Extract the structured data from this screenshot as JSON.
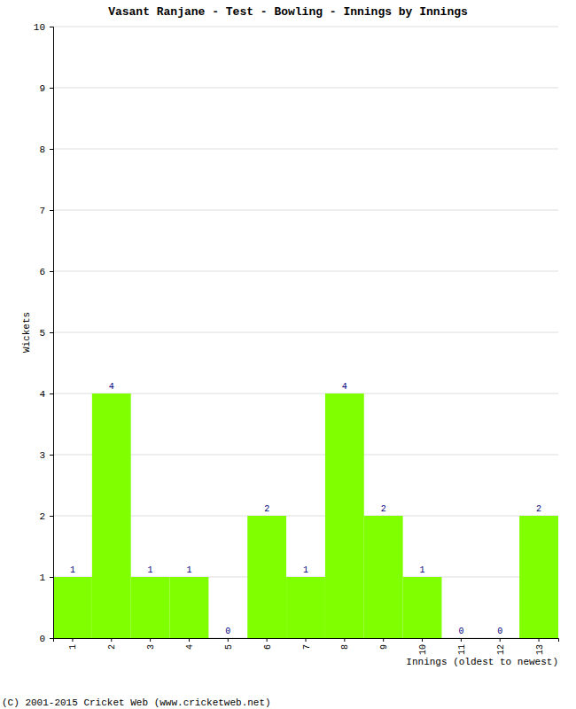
{
  "chart_data": {
    "type": "bar",
    "title": "Vasant Ranjane - Test - Bowling - Innings by Innings",
    "x_label": "Innings (oldest to newest)",
    "y_label": "Wickets",
    "annotations": [
      "(C) 2001-2015 Cricket Web (www.cricketweb.net)"
    ],
    "categories": [
      "1",
      "2",
      "3",
      "4",
      "5",
      "6",
      "7",
      "8",
      "9",
      "10",
      "11",
      "12",
      "13"
    ],
    "values": [
      1,
      4,
      1,
      1,
      0,
      2,
      1,
      4,
      2,
      1,
      0,
      0,
      2
    ],
    "color": "#80ff00",
    "ylim": [
      0,
      10
    ],
    "yticks": [
      0,
      1,
      2,
      3,
      4,
      5,
      6,
      7,
      8,
      9,
      10
    ],
    "grid": true,
    "data_labels": true
  }
}
